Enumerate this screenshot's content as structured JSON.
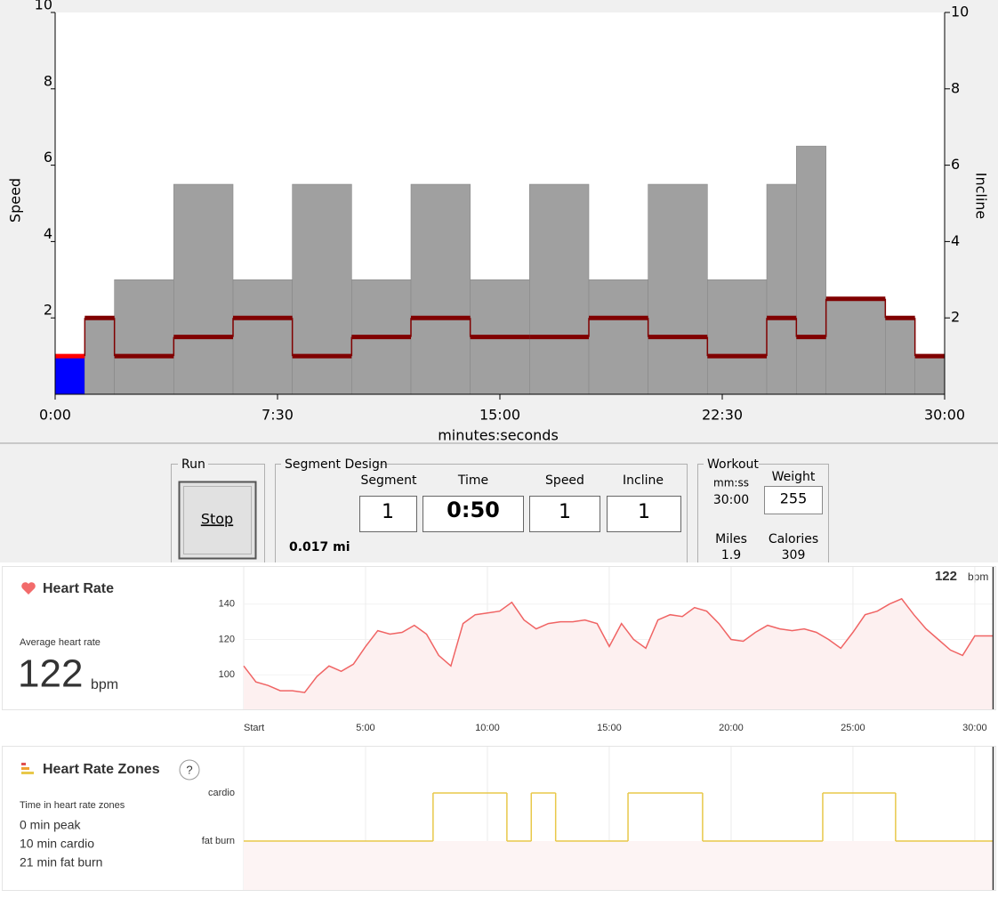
{
  "chart_data": [
    {
      "type": "step",
      "x": [
        0,
        1,
        2,
        4,
        6,
        8,
        10,
        12,
        14,
        16,
        18,
        20,
        22,
        24,
        25,
        26,
        28,
        29
      ],
      "xlim": [
        0,
        30
      ],
      "xticks": [
        {
          "value": 0,
          "label": "0:00"
        },
        {
          "value": 7.5,
          "label": "7:30"
        },
        {
          "value": 15,
          "label": "15:00"
        },
        {
          "value": 22.5,
          "label": "22:30"
        },
        {
          "value": 30,
          "label": "30:00"
        }
      ],
      "xlabel": "minutes:seconds",
      "ylabel": "Speed",
      "y2label": "Incline",
      "ylim": [
        0,
        10
      ],
      "yticks": [
        2,
        4,
        6,
        8,
        10
      ],
      "y2lim": [
        0,
        10
      ],
      "y2ticks": [
        2,
        4,
        6,
        8,
        10
      ],
      "series": [
        {
          "color": "#a0a0a0",
          "highlight_color": "#0000ff",
          "axis": "y2",
          "values": [
            1,
            2,
            3,
            5.5,
            3,
            5.5,
            3,
            5.5,
            3,
            5.5,
            3,
            5.5,
            3,
            5.5,
            6.5,
            2.5,
            2,
            1
          ]
        },
        {
          "color": "#800000",
          "highlight_color": "#ff0000",
          "values": [
            1,
            2,
            1,
            1.5,
            2,
            1,
            1.5,
            2,
            1.5,
            1.5,
            2,
            1.5,
            1,
            2,
            1.5,
            2.5,
            2,
            1
          ]
        }
      ]
    },
    {
      "type": "line",
      "title": "Heart Rate",
      "x": [
        0,
        0.5,
        1,
        1.5,
        2,
        2.5,
        3,
        3.5,
        4,
        4.5,
        5,
        5.5,
        6,
        6.5,
        7,
        7.5,
        8,
        8.5,
        9,
        9.5,
        10,
        10.5,
        11,
        11.5,
        12,
        12.5,
        13,
        13.5,
        14,
        14.5,
        15,
        15.5,
        16,
        16.5,
        17,
        17.5,
        18,
        18.5,
        19,
        19.5,
        20,
        20.5,
        21,
        21.5,
        22,
        22.5,
        23,
        23.5,
        24,
        24.5,
        25,
        25.5,
        26,
        26.5,
        27,
        27.5,
        28,
        28.5,
        29,
        29.5,
        30,
        30.5,
        30.77
      ],
      "values": [
        105,
        96,
        94,
        91,
        91,
        90,
        99,
        105,
        102,
        106,
        116,
        125,
        123,
        124,
        128,
        123,
        111,
        105,
        129,
        134,
        135,
        136,
        141,
        131,
        126,
        129,
        130,
        130,
        131,
        129,
        116,
        129,
        120,
        115,
        131,
        134,
        133,
        138,
        136,
        129,
        120,
        119,
        124,
        128,
        126,
        125,
        126,
        124,
        120,
        115,
        124,
        134,
        136,
        140,
        143,
        134,
        126,
        120,
        114,
        111,
        122,
        122,
        122
      ],
      "color": "#f06464",
      "xlim": [
        0,
        30.77
      ],
      "xticks": [
        {
          "value": 0,
          "label": "Start"
        },
        {
          "value": 5,
          "label": "5:00"
        },
        {
          "value": 10,
          "label": "10:00"
        },
        {
          "value": 15,
          "label": "15:00"
        },
        {
          "value": 20,
          "label": "20:00"
        },
        {
          "value": 25,
          "label": "25:00"
        },
        {
          "value": 30,
          "label": "30:00"
        }
      ],
      "ylim": [
        80.5,
        161
      ],
      "yticks": [
        100,
        120,
        140
      ],
      "current_value": 122,
      "current_unit": "bpm",
      "summary": {
        "label": "Average heart rate",
        "value": 122,
        "unit": "bpm"
      }
    },
    {
      "type": "zone-step",
      "title": "Heart Rate Zones",
      "help": "?",
      "x": [
        0,
        7.77,
        10.8,
        11.8,
        12.8,
        15.77,
        18.83,
        23.76,
        26.75
      ],
      "values": [
        "fat burn",
        "cardio",
        "fat burn",
        "cardio",
        "fat burn",
        "cardio",
        "fat burn",
        "cardio",
        "fat burn"
      ],
      "y_categories": [
        "fat burn",
        "cardio"
      ],
      "color": "#e8c84a",
      "xlim": [
        0,
        30.77
      ],
      "summary": {
        "label": "Time in heart rate zones",
        "lines": [
          "0 min peak",
          "10 min cardio",
          "21 min fat burn"
        ]
      }
    }
  ],
  "controls": {
    "run": {
      "title": "Run",
      "button": "Stop"
    },
    "segment_design": {
      "title": "Segment Design",
      "segment": {
        "label": "Segment",
        "value": 1
      },
      "time": {
        "label": "Time",
        "value": "0:50"
      },
      "speed": {
        "label": "Speed",
        "value": 1
      },
      "incline": {
        "label": "Incline",
        "value": 1
      },
      "distance": "0.017 mi"
    },
    "workout": {
      "title": "Workout",
      "duration_label": "mm:ss",
      "duration": "30:00",
      "weight_label": "Weight",
      "weight": 255,
      "miles_label": "Miles",
      "miles": 1.9,
      "calories_label": "Calories",
      "calories": 309
    }
  }
}
